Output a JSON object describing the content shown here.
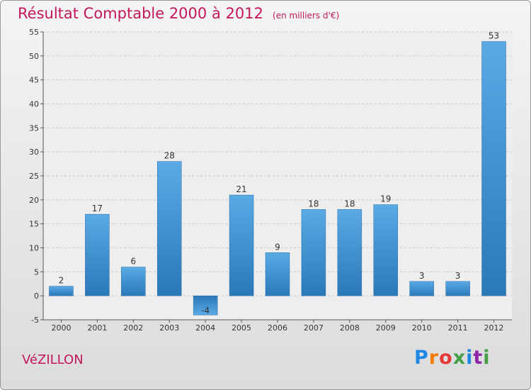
{
  "header": {
    "title": "Résultat Comptable 2000 à 2012",
    "subtitle": "(en milliers d'€)"
  },
  "commune": "VéZILLON",
  "logo": {
    "text": "Proxiti",
    "colors": [
      "#1e88e5",
      "#f57c00",
      "#e53935",
      "#43a047",
      "#1e88e5",
      "#8e24aa",
      "#43a047"
    ]
  },
  "chart_data": {
    "type": "bar",
    "title": "Résultat Comptable 2000 à 2012",
    "subtitle": "(en milliers d'€)",
    "categories": [
      "2000",
      "2001",
      "2002",
      "2003",
      "2004",
      "2005",
      "2006",
      "2007",
      "2008",
      "2009",
      "2010",
      "2011",
      "2012"
    ],
    "values": [
      2,
      17,
      6,
      28,
      -4,
      21,
      9,
      18,
      18,
      19,
      3,
      3,
      53
    ],
    "value_labels": [
      "2",
      "17",
      "6",
      "28",
      "-4",
      "21",
      "9",
      "18",
      "18",
      "19",
      "3",
      "3",
      "53"
    ],
    "ylim": [
      -5,
      55
    ],
    "yticks": [
      -5,
      0,
      5,
      10,
      15,
      20,
      25,
      30,
      35,
      40,
      45,
      50,
      55
    ],
    "grid": true,
    "bar_color": "#3a8fd4"
  }
}
